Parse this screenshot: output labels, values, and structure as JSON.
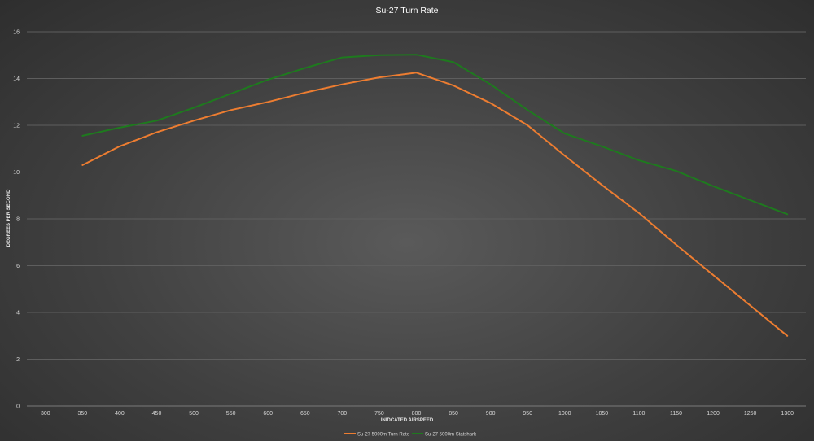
{
  "chart_data": {
    "type": "line",
    "title": "Su-27 Turn Rate",
    "xlabel": "INIDCATED AIRSPEED",
    "ylabel": "DEGREES PER SECOND",
    "x": [
      300,
      350,
      400,
      450,
      500,
      550,
      600,
      650,
      700,
      750,
      800,
      850,
      900,
      950,
      1000,
      1050,
      1100,
      1150,
      1200,
      1250,
      1300
    ],
    "xlim": [
      300,
      1300
    ],
    "ylim": [
      0,
      16
    ],
    "yticks": [
      0,
      2,
      4,
      6,
      8,
      10,
      12,
      14,
      16
    ],
    "grid": true,
    "legend": "bottom-center",
    "series": [
      {
        "name": "Su-27 5000m Turn Rate",
        "color": "#ed7d31",
        "points": [
          [
            350,
            10.3
          ],
          [
            400,
            11.1
          ],
          [
            450,
            11.7
          ],
          [
            500,
            12.2
          ],
          [
            550,
            12.65
          ],
          [
            600,
            13.0
          ],
          [
            650,
            13.4
          ],
          [
            700,
            13.75
          ],
          [
            750,
            14.05
          ],
          [
            800,
            14.25
          ],
          [
            850,
            13.7
          ],
          [
            900,
            12.95
          ],
          [
            950,
            12.0
          ],
          [
            1000,
            10.7
          ],
          [
            1050,
            9.45
          ],
          [
            1100,
            8.25
          ],
          [
            1150,
            6.9
          ],
          [
            1200,
            5.6
          ],
          [
            1250,
            4.3
          ],
          [
            1300,
            3.0
          ]
        ]
      },
      {
        "name": "Su-27 5000m Statshark",
        "color": "#1e7a1e",
        "points": [
          [
            350,
            11.55
          ],
          [
            400,
            11.9
          ],
          [
            450,
            12.2
          ],
          [
            500,
            12.75
          ],
          [
            550,
            13.35
          ],
          [
            600,
            13.95
          ],
          [
            650,
            14.45
          ],
          [
            700,
            14.9
          ],
          [
            750,
            15.0
          ],
          [
            800,
            15.02
          ],
          [
            850,
            14.7
          ],
          [
            900,
            13.75
          ],
          [
            950,
            12.65
          ],
          [
            1000,
            11.65
          ],
          [
            1050,
            11.1
          ],
          [
            1100,
            10.5
          ],
          [
            1150,
            10.05
          ],
          [
            1200,
            9.4
          ],
          [
            1250,
            8.8
          ],
          [
            1300,
            8.2
          ]
        ]
      }
    ]
  }
}
